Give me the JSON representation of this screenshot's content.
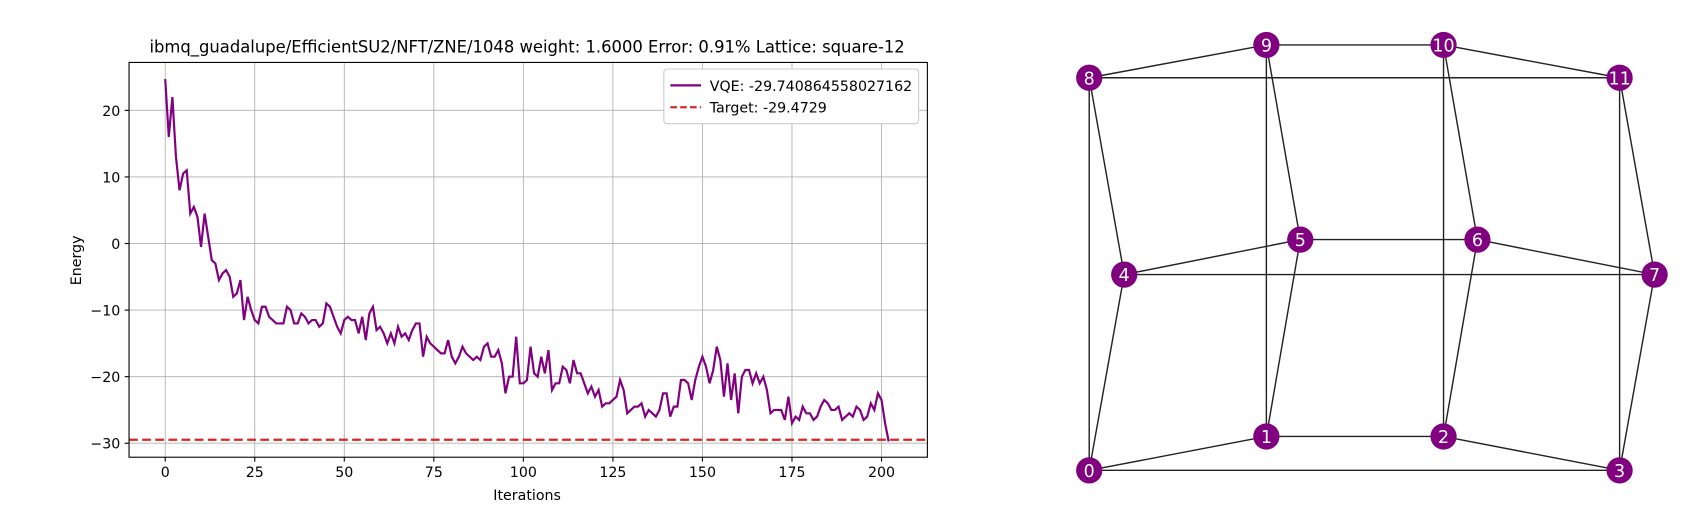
{
  "chart_data": [
    {
      "type": "line",
      "title": "ibmq_guadalupe/EfficientSU2/NFT/ZNE/1048 weight: 1.6000 Error: 0.91% Lattice: square-12",
      "xlabel": "Iterations",
      "ylabel": "Energy",
      "xlim": [
        -10.1,
        212.8
      ],
      "ylim": [
        -32.1,
        27.2
      ],
      "xticks": [
        0,
        25,
        50,
        75,
        100,
        125,
        150,
        175,
        200
      ],
      "yticks": [
        {
          "value": -30,
          "label": "−30"
        },
        {
          "value": -20,
          "label": "−20"
        },
        {
          "value": -10,
          "label": "−10"
        },
        0,
        10,
        20
      ],
      "grid": true,
      "legend": "upper right",
      "series": [
        {
          "name": "VQE: -29.740864558027162",
          "color": "#800080",
          "values": [
            24.7,
            16,
            22,
            13,
            8,
            10.5,
            11,
            4.5,
            5.5,
            4,
            -0.5,
            4.5,
            1,
            -2.5,
            -3,
            -5.5,
            -4.5,
            -4,
            -5,
            -8,
            -7.5,
            -5.5,
            -11.5,
            -8,
            -10,
            -11.5,
            -12,
            -9.5,
            -9.5,
            -11,
            -11.5,
            -12,
            -12,
            -12,
            -9.5,
            -10,
            -12,
            -12,
            -10.5,
            -11,
            -12,
            -11.5,
            -11.5,
            -12.5,
            -12,
            -9,
            -9.5,
            -11,
            -12.5,
            -13.5,
            -11.5,
            -11,
            -11.5,
            -11.5,
            -13.5,
            -11,
            -14.5,
            -10.5,
            -9.5,
            -13,
            -12.5,
            -13.5,
            -15,
            -13.5,
            -15,
            -12.5,
            -14,
            -13.5,
            -14.5,
            -13,
            -12,
            -12,
            -17,
            -14,
            -15,
            -15.5,
            -16,
            -16.5,
            -16.5,
            -14.5,
            -17,
            -18,
            -17,
            -15.5,
            -16.5,
            -17,
            -17.5,
            -17,
            -17.5,
            -15.5,
            -15,
            -17,
            -17,
            -16,
            -18,
            -22.5,
            -20,
            -20,
            -14,
            -21,
            -21,
            -20.5,
            -15.5,
            -19.5,
            -20,
            -17,
            -19.5,
            -16,
            -22,
            -21,
            -21,
            -18.5,
            -19,
            -21,
            -17.5,
            -19.5,
            -19.5,
            -21,
            -22.5,
            -21.5,
            -23,
            -22,
            -24.5,
            -24,
            -24,
            -23.5,
            -23,
            -20.5,
            -22,
            -25.5,
            -25,
            -24.5,
            -24.5,
            -24,
            -26,
            -25,
            -25.5,
            -26,
            -25,
            -22.5,
            -22.5,
            -26,
            -24.5,
            -24.5,
            -20.5,
            -20.5,
            -21,
            -23.5,
            -20.5,
            -18.5,
            -17,
            -18.5,
            -21,
            -19,
            -15.5,
            -17.5,
            -23,
            -18,
            -23.5,
            -19.5,
            -25.5,
            -20,
            -19,
            -19,
            -21,
            -19.5,
            -21,
            -20,
            -22,
            -25.5,
            -25,
            -25,
            -25,
            -26.5,
            -23,
            -27,
            -26,
            -26.5,
            -24.5,
            -25.5,
            -25.5,
            -26.5,
            -26,
            -24.5,
            -23.5,
            -24,
            -25,
            -25,
            -24.5,
            -26.5,
            -26,
            -25.5,
            -26,
            -24.5,
            -25,
            -26.5,
            -26,
            -24,
            -25,
            -22.5,
            -23.5,
            -27,
            -29.740864558027162
          ]
        }
      ],
      "hlines": [
        {
          "name": "Target: -29.4729",
          "value": -29.4729,
          "color": "#d62728",
          "style": "dashed"
        }
      ]
    },
    {
      "type": "graph",
      "node_color": "#800080",
      "nodes": [
        "0",
        "1",
        "2",
        "3",
        "4",
        "5",
        "6",
        "7",
        "8",
        "9",
        "10",
        "11"
      ],
      "edges": [
        [
          0,
          1
        ],
        [
          1,
          2
        ],
        [
          2,
          3
        ],
        [
          0,
          3
        ],
        [
          4,
          5
        ],
        [
          5,
          6
        ],
        [
          6,
          7
        ],
        [
          4,
          7
        ],
        [
          8,
          9
        ],
        [
          9,
          10
        ],
        [
          10,
          11
        ],
        [
          8,
          11
        ],
        [
          0,
          4
        ],
        [
          1,
          5
        ],
        [
          2,
          6
        ],
        [
          3,
          7
        ],
        [
          4,
          8
        ],
        [
          5,
          9
        ],
        [
          6,
          10
        ],
        [
          7,
          11
        ],
        [
          0,
          8
        ],
        [
          1,
          9
        ],
        [
          2,
          10
        ],
        [
          3,
          11
        ]
      ]
    }
  ]
}
